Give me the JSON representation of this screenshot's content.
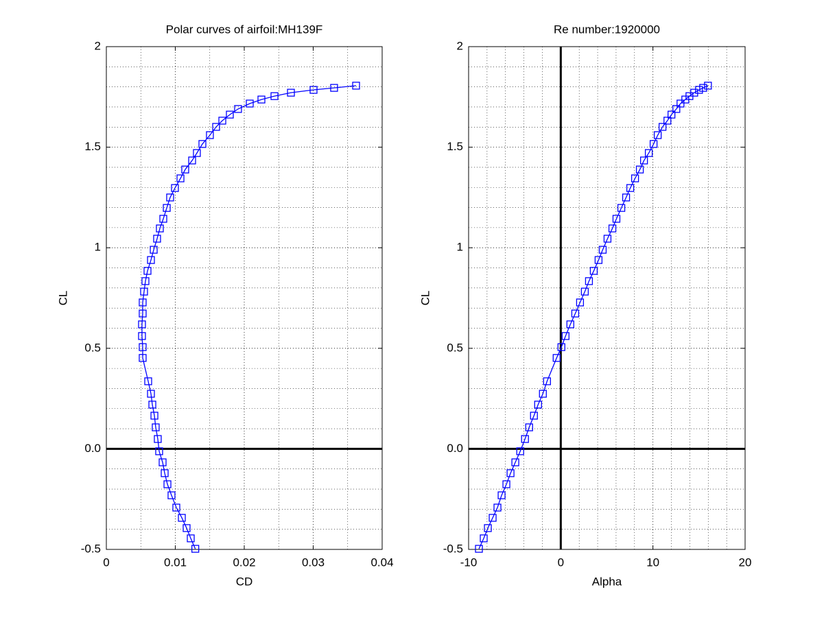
{
  "chart_data": [
    {
      "type": "line",
      "title": "Polar curves of airfoil:MH139F",
      "xlabel": "CD",
      "ylabel": "CL",
      "x": [
        0.0129,
        0.01224,
        0.01164,
        0.01095,
        0.01015,
        0.00945,
        0.00886,
        0.00846,
        0.00816,
        0.00766,
        0.00746,
        0.00716,
        0.00697,
        0.00667,
        0.00647,
        0.00607,
        0.00527,
        0.00527,
        0.00517,
        0.00517,
        0.00527,
        0.00527,
        0.00547,
        0.00567,
        0.00597,
        0.00647,
        0.00687,
        0.00736,
        0.00776,
        0.00826,
        0.00876,
        0.00925,
        0.00995,
        0.01075,
        0.01144,
        0.01244,
        0.01313,
        0.01393,
        0.01502,
        0.01592,
        0.01682,
        0.01791,
        0.0191,
        0.0208,
        0.02249,
        0.02438,
        0.02677,
        0.03005,
        0.03303,
        0.03622
      ],
      "series": [
        {
          "color": "#0000ff",
          "marker": "square",
          "values": [
            -0.497,
            -0.445,
            -0.394,
            -0.343,
            -0.292,
            -0.231,
            -0.176,
            -0.121,
            -0.067,
            -0.012,
            0.049,
            0.107,
            0.165,
            0.22,
            0.274,
            0.336,
            0.452,
            0.506,
            0.561,
            0.619,
            0.673,
            0.728,
            0.782,
            0.834,
            0.885,
            0.939,
            0.99,
            1.045,
            1.096,
            1.144,
            1.198,
            1.25,
            1.297,
            1.345,
            1.389,
            1.434,
            1.471,
            1.516,
            1.56,
            1.601,
            1.632,
            1.662,
            1.69,
            1.717,
            1.737,
            1.754,
            1.771,
            1.785,
            1.795,
            1.806
          ]
        }
      ],
      "xlim": [
        0,
        0.04
      ],
      "xticks": [
        0,
        0.01,
        0.02,
        0.03,
        0.04
      ],
      "ylim": [
        -0.5,
        2
      ],
      "yticks": [
        -0.5,
        {
          "value": 0,
          "label": "0.0"
        },
        0.5,
        1,
        1.5,
        2
      ],
      "grid": true,
      "zero_lines": true
    },
    {
      "type": "line",
      "title": "Re number:1920000",
      "xlabel": "Alpha",
      "ylabel": "CL",
      "x": [
        -8.88,
        -8.36,
        -7.91,
        -7.39,
        -6.87,
        -6.42,
        -5.9,
        -5.45,
        -4.93,
        -4.4,
        -3.88,
        -3.43,
        -2.91,
        -2.46,
        -1.94,
        -1.49,
        -0.45,
        0.07,
        0.52,
        1.04,
        1.57,
        2.09,
        2.61,
        3.06,
        3.58,
        4.1,
        4.55,
        5.07,
        5.6,
        6.04,
        6.57,
        7.09,
        7.54,
        8.06,
        8.58,
        9.03,
        9.55,
        10.07,
        10.52,
        11.04,
        11.57,
        12.01,
        12.54,
        12.99,
        13.51,
        13.96,
        14.48,
        15.0,
        15.45,
        15.97
      ],
      "series": [
        {
          "color": "#0000ff",
          "marker": "square",
          "values": [
            -0.497,
            -0.445,
            -0.394,
            -0.343,
            -0.292,
            -0.231,
            -0.176,
            -0.121,
            -0.067,
            -0.012,
            0.049,
            0.107,
            0.165,
            0.22,
            0.274,
            0.336,
            0.452,
            0.506,
            0.561,
            0.619,
            0.673,
            0.728,
            0.782,
            0.834,
            0.885,
            0.939,
            0.99,
            1.045,
            1.096,
            1.144,
            1.198,
            1.25,
            1.297,
            1.345,
            1.389,
            1.434,
            1.471,
            1.516,
            1.56,
            1.601,
            1.632,
            1.662,
            1.69,
            1.717,
            1.737,
            1.754,
            1.771,
            1.785,
            1.795,
            1.806
          ]
        }
      ],
      "xlim": [
        -10,
        20
      ],
      "xticks": [
        -10,
        0,
        10,
        20
      ],
      "ylim": [
        -0.5,
        2
      ],
      "yticks": [
        -0.5,
        {
          "value": 0,
          "label": "0.0"
        },
        0.5,
        1,
        1.5,
        2
      ],
      "grid": true,
      "zero_lines": true
    }
  ]
}
